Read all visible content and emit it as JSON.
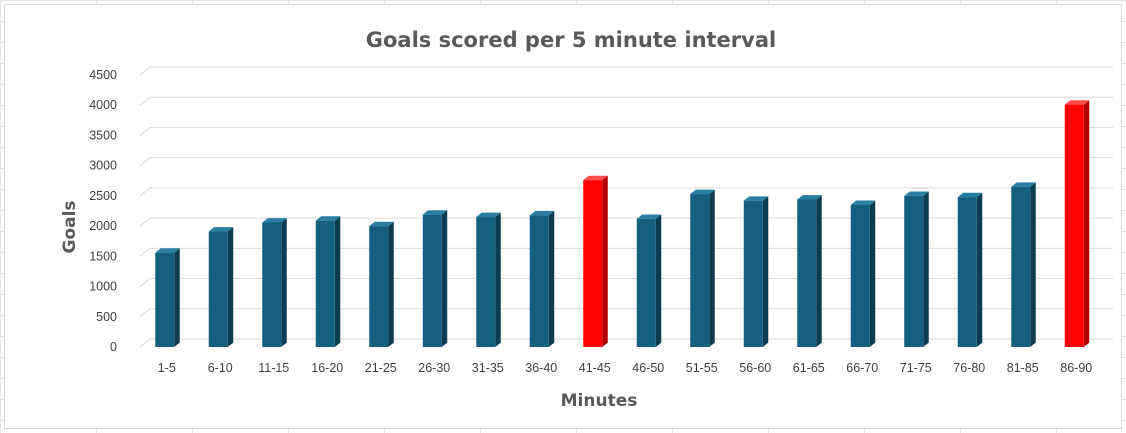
{
  "chart_data": {
    "type": "bar",
    "title": "Goals scored per 5 minute interval",
    "xlabel": "Minutes",
    "ylabel": "Goals",
    "categories": [
      "1-5",
      "6-10",
      "11-15",
      "16-20",
      "21-25",
      "26-30",
      "31-35",
      "36-40",
      "41-45",
      "46-50",
      "51-55",
      "56-60",
      "61-65",
      "66-70",
      "71-75",
      "76-80",
      "81-85",
      "86-90"
    ],
    "values": [
      1560,
      1910,
      2060,
      2090,
      2000,
      2190,
      2150,
      2180,
      2760,
      2120,
      2530,
      2420,
      2440,
      2350,
      2500,
      2480,
      2650,
      4010
    ],
    "highlighted": [
      "41-45",
      "86-90"
    ],
    "ylim": [
      0,
      4500
    ],
    "yticks": [
      0,
      500,
      1000,
      1500,
      2000,
      2500,
      3000,
      3500,
      4000,
      4500
    ],
    "grid": true,
    "legend": "none",
    "colors": {
      "bar": "#145f80",
      "bar_side": "#0b3c52",
      "bar_top": "#2a7ea3",
      "highlight": "#ff0000",
      "highlight_side": "#b00000",
      "highlight_top": "#ff4d4d",
      "grid": "#d9d9d9",
      "text": "#595959"
    }
  }
}
